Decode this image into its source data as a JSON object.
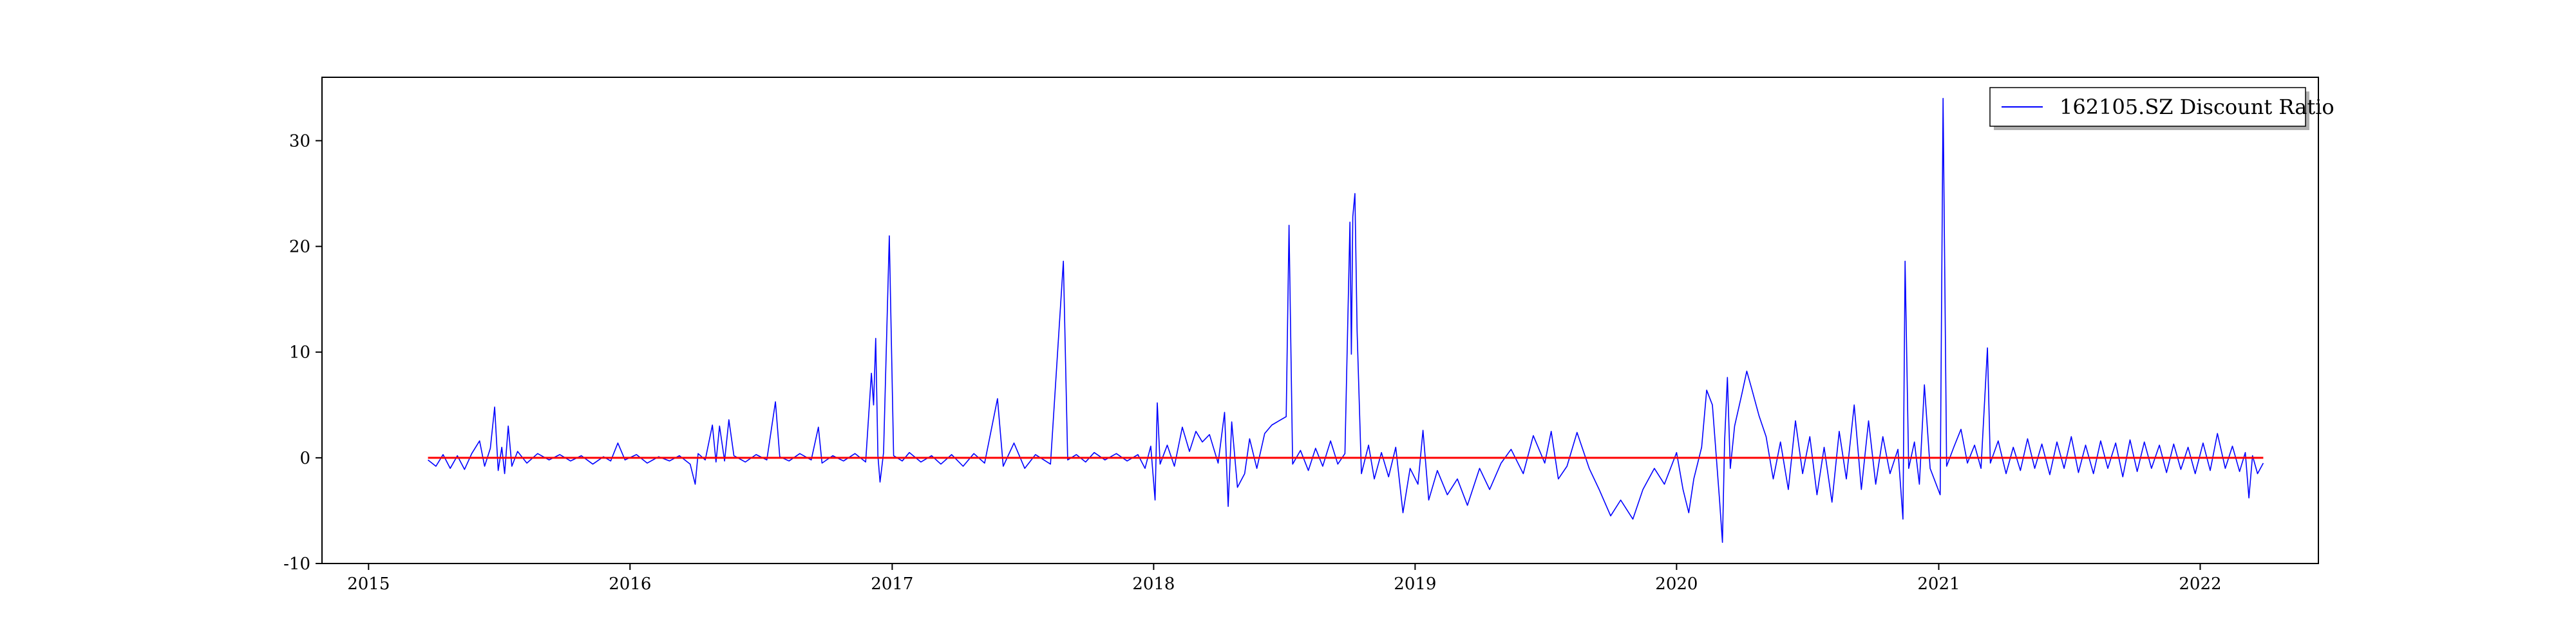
{
  "chart_data": {
    "type": "line",
    "title": "",
    "xlabel": "",
    "ylabel": "",
    "x_axis": {
      "type": "date",
      "range": [
        "2014-10-28",
        "2022-06-15"
      ],
      "ticks": [
        "2015",
        "2016",
        "2017",
        "2018",
        "2019",
        "2020",
        "2021",
        "2022"
      ]
    },
    "y_axis": {
      "range": [
        -10,
        36
      ],
      "ticks": [
        -10,
        0,
        10,
        20,
        30
      ]
    },
    "grid": false,
    "legend": {
      "position": "top-right",
      "entries": [
        "162105.SZ Discount Ratio"
      ]
    },
    "series": [
      {
        "name": "162105.SZ Discount Ratio",
        "color": "#0000ff",
        "style": "line",
        "points": [
          [
            "2015-03-25",
            -0.2
          ],
          [
            "2015-04-05",
            -0.8
          ],
          [
            "2015-04-15",
            0.3
          ],
          [
            "2015-04-25",
            -1.0
          ],
          [
            "2015-05-05",
            0.2
          ],
          [
            "2015-05-15",
            -1.1
          ],
          [
            "2015-05-25",
            0.4
          ],
          [
            "2015-06-05",
            1.6
          ],
          [
            "2015-06-12",
            -0.8
          ],
          [
            "2015-06-20",
            0.9
          ],
          [
            "2015-06-26",
            4.8
          ],
          [
            "2015-07-01",
            -1.2
          ],
          [
            "2015-07-06",
            1.0
          ],
          [
            "2015-07-10",
            -1.5
          ],
          [
            "2015-07-15",
            3.0
          ],
          [
            "2015-07-20",
            -0.8
          ],
          [
            "2015-07-28",
            0.6
          ],
          [
            "2015-08-10",
            -0.5
          ],
          [
            "2015-08-25",
            0.4
          ],
          [
            "2015-09-10",
            -0.2
          ],
          [
            "2015-09-25",
            0.3
          ],
          [
            "2015-10-10",
            -0.3
          ],
          [
            "2015-10-25",
            0.2
          ],
          [
            "2015-11-10",
            -0.6
          ],
          [
            "2015-11-25",
            0.1
          ],
          [
            "2015-12-05",
            -0.3
          ],
          [
            "2015-12-15",
            1.4
          ],
          [
            "2015-12-25",
            -0.2
          ],
          [
            "2016-01-10",
            0.3
          ],
          [
            "2016-01-25",
            -0.5
          ],
          [
            "2016-02-10",
            0.1
          ],
          [
            "2016-02-25",
            -0.3
          ],
          [
            "2016-03-10",
            0.2
          ],
          [
            "2016-03-25",
            -0.6
          ],
          [
            "2016-04-01",
            -2.5
          ],
          [
            "2016-04-05",
            0.4
          ],
          [
            "2016-04-15",
            -0.2
          ],
          [
            "2016-04-25",
            3.1
          ],
          [
            "2016-04-30",
            -0.4
          ],
          [
            "2016-05-05",
            3.0
          ],
          [
            "2016-05-12",
            -0.3
          ],
          [
            "2016-05-18",
            3.6
          ],
          [
            "2016-05-25",
            0.2
          ],
          [
            "2016-06-10",
            -0.4
          ],
          [
            "2016-06-25",
            0.3
          ],
          [
            "2016-07-10",
            -0.2
          ],
          [
            "2016-07-22",
            5.3
          ],
          [
            "2016-07-28",
            0.1
          ],
          [
            "2016-08-10",
            -0.3
          ],
          [
            "2016-08-25",
            0.4
          ],
          [
            "2016-09-10",
            -0.2
          ],
          [
            "2016-09-20",
            2.9
          ],
          [
            "2016-09-25",
            -0.5
          ],
          [
            "2016-10-10",
            0.2
          ],
          [
            "2016-10-25",
            -0.3
          ],
          [
            "2016-11-10",
            0.4
          ],
          [
            "2016-11-25",
            -0.4
          ],
          [
            "2016-12-03",
            8.0
          ],
          [
            "2016-12-06",
            5.0
          ],
          [
            "2016-12-09",
            11.3
          ],
          [
            "2016-12-12",
            0.2
          ],
          [
            "2016-12-15",
            -2.3
          ],
          [
            "2016-12-20",
            0.5
          ],
          [
            "2016-12-28",
            21.0
          ],
          [
            "2017-01-03",
            0.2
          ],
          [
            "2017-01-15",
            -0.3
          ],
          [
            "2017-01-25",
            0.5
          ],
          [
            "2017-02-10",
            -0.4
          ],
          [
            "2017-02-25",
            0.2
          ],
          [
            "2017-03-10",
            -0.6
          ],
          [
            "2017-03-25",
            0.3
          ],
          [
            "2017-04-10",
            -0.8
          ],
          [
            "2017-04-25",
            0.4
          ],
          [
            "2017-05-10",
            -0.5
          ],
          [
            "2017-05-28",
            5.6
          ],
          [
            "2017-06-05",
            -0.8
          ],
          [
            "2017-06-20",
            1.4
          ],
          [
            "2017-07-05",
            -1.0
          ],
          [
            "2017-07-20",
            0.3
          ],
          [
            "2017-08-10",
            -0.6
          ],
          [
            "2017-08-28",
            18.6
          ],
          [
            "2017-09-03",
            -0.2
          ],
          [
            "2017-09-15",
            0.3
          ],
          [
            "2017-09-28",
            -0.4
          ],
          [
            "2017-10-10",
            0.5
          ],
          [
            "2017-10-25",
            -0.2
          ],
          [
            "2017-11-10",
            0.4
          ],
          [
            "2017-11-25",
            -0.3
          ],
          [
            "2017-12-10",
            0.3
          ],
          [
            "2017-12-20",
            -1.0
          ],
          [
            "2017-12-28",
            1.1
          ],
          [
            "2018-01-03",
            -4.0
          ],
          [
            "2018-01-06",
            5.2
          ],
          [
            "2018-01-10",
            -0.6
          ],
          [
            "2018-01-20",
            1.2
          ],
          [
            "2018-01-30",
            -0.8
          ],
          [
            "2018-02-10",
            2.9
          ],
          [
            "2018-02-20",
            0.6
          ],
          [
            "2018-03-01",
            2.5
          ],
          [
            "2018-03-10",
            1.5
          ],
          [
            "2018-03-20",
            2.2
          ],
          [
            "2018-04-01",
            -0.5
          ],
          [
            "2018-04-10",
            4.3
          ],
          [
            "2018-04-15",
            -4.6
          ],
          [
            "2018-04-20",
            3.4
          ],
          [
            "2018-04-28",
            -2.8
          ],
          [
            "2018-05-08",
            -1.5
          ],
          [
            "2018-05-15",
            1.8
          ],
          [
            "2018-05-25",
            -1.0
          ],
          [
            "2018-06-05",
            2.3
          ],
          [
            "2018-06-15",
            3.1
          ],
          [
            "2018-06-25",
            3.5
          ],
          [
            "2018-07-05",
            3.9
          ],
          [
            "2018-07-09",
            22.0
          ],
          [
            "2018-07-14",
            -0.6
          ],
          [
            "2018-07-25",
            0.7
          ],
          [
            "2018-08-05",
            -1.2
          ],
          [
            "2018-08-15",
            0.9
          ],
          [
            "2018-08-25",
            -0.8
          ],
          [
            "2018-09-05",
            1.6
          ],
          [
            "2018-09-15",
            -0.6
          ],
          [
            "2018-09-25",
            0.4
          ],
          [
            "2018-10-02",
            22.3
          ],
          [
            "2018-10-04",
            9.8
          ],
          [
            "2018-10-06",
            22.8
          ],
          [
            "2018-10-09",
            25.0
          ],
          [
            "2018-10-12",
            12.0
          ],
          [
            "2018-10-18",
            -1.5
          ],
          [
            "2018-10-28",
            1.2
          ],
          [
            "2018-11-05",
            -2.0
          ],
          [
            "2018-11-15",
            0.5
          ],
          [
            "2018-11-25",
            -1.8
          ],
          [
            "2018-12-05",
            1.0
          ],
          [
            "2018-12-15",
            -5.2
          ],
          [
            "2018-12-25",
            -1.0
          ],
          [
            "2019-01-05",
            -2.5
          ],
          [
            "2019-01-12",
            2.6
          ],
          [
            "2019-01-20",
            -4.0
          ],
          [
            "2019-02-01",
            -1.2
          ],
          [
            "2019-02-15",
            -3.5
          ],
          [
            "2019-03-01",
            -2.0
          ],
          [
            "2019-03-15",
            -4.5
          ],
          [
            "2019-04-01",
            -1.0
          ],
          [
            "2019-04-15",
            -3.0
          ],
          [
            "2019-05-01",
            -0.5
          ],
          [
            "2019-05-15",
            0.8
          ],
          [
            "2019-06-01",
            -1.5
          ],
          [
            "2019-06-15",
            2.1
          ],
          [
            "2019-07-01",
            -0.5
          ],
          [
            "2019-07-10",
            2.5
          ],
          [
            "2019-07-20",
            -2.0
          ],
          [
            "2019-08-01",
            -0.8
          ],
          [
            "2019-08-15",
            2.4
          ],
          [
            "2019-09-01",
            -1.0
          ],
          [
            "2019-09-15",
            -3.0
          ],
          [
            "2019-10-01",
            -5.5
          ],
          [
            "2019-10-15",
            -4.0
          ],
          [
            "2019-11-01",
            -5.8
          ],
          [
            "2019-11-15",
            -3.0
          ],
          [
            "2019-12-01",
            -1.0
          ],
          [
            "2019-12-15",
            -2.5
          ],
          [
            "2020-01-01",
            0.5
          ],
          [
            "2020-01-10",
            -3.0
          ],
          [
            "2020-01-18",
            -5.2
          ],
          [
            "2020-01-25",
            -2.0
          ],
          [
            "2020-02-05",
            1.0
          ],
          [
            "2020-02-12",
            6.4
          ],
          [
            "2020-02-20",
            5.0
          ],
          [
            "2020-03-01",
            -4.0
          ],
          [
            "2020-03-05",
            -8.0
          ],
          [
            "2020-03-08",
            1.5
          ],
          [
            "2020-03-12",
            7.6
          ],
          [
            "2020-03-16",
            -1.0
          ],
          [
            "2020-03-22",
            3.0
          ],
          [
            "2020-04-01",
            6.0
          ],
          [
            "2020-04-08",
            8.2
          ],
          [
            "2020-04-15",
            6.5
          ],
          [
            "2020-04-25",
            4.0
          ],
          [
            "2020-05-05",
            2.0
          ],
          [
            "2020-05-15",
            -2.0
          ],
          [
            "2020-05-25",
            1.5
          ],
          [
            "2020-06-05",
            -3.0
          ],
          [
            "2020-06-15",
            3.5
          ],
          [
            "2020-06-25",
            -1.5
          ],
          [
            "2020-07-05",
            2.0
          ],
          [
            "2020-07-15",
            -3.5
          ],
          [
            "2020-07-25",
            1.0
          ],
          [
            "2020-08-05",
            -4.2
          ],
          [
            "2020-08-15",
            2.5
          ],
          [
            "2020-08-25",
            -2.0
          ],
          [
            "2020-09-05",
            5.0
          ],
          [
            "2020-09-15",
            -3.0
          ],
          [
            "2020-09-25",
            3.5
          ],
          [
            "2020-10-05",
            -2.5
          ],
          [
            "2020-10-15",
            2.0
          ],
          [
            "2020-10-25",
            -1.5
          ],
          [
            "2020-11-05",
            0.8
          ],
          [
            "2020-11-12",
            -5.8
          ],
          [
            "2020-11-15",
            18.6
          ],
          [
            "2020-11-20",
            -1.0
          ],
          [
            "2020-11-28",
            1.5
          ],
          [
            "2020-12-05",
            -2.5
          ],
          [
            "2020-12-12",
            6.9
          ],
          [
            "2020-12-20",
            -1.0
          ],
          [
            "2021-01-03",
            -3.5
          ],
          [
            "2021-01-07",
            34.0
          ],
          [
            "2021-01-12",
            -0.8
          ],
          [
            "2021-01-22",
            1.0
          ],
          [
            "2021-02-01",
            2.7
          ],
          [
            "2021-02-10",
            -0.5
          ],
          [
            "2021-02-20",
            1.2
          ],
          [
            "2021-03-01",
            -1.0
          ],
          [
            "2021-03-10",
            10.4
          ],
          [
            "2021-03-14",
            -0.5
          ],
          [
            "2021-03-25",
            1.6
          ],
          [
            "2021-04-05",
            -1.5
          ],
          [
            "2021-04-15",
            1.0
          ],
          [
            "2021-04-25",
            -1.2
          ],
          [
            "2021-05-05",
            1.8
          ],
          [
            "2021-05-15",
            -1.0
          ],
          [
            "2021-05-25",
            1.3
          ],
          [
            "2021-06-05",
            -1.6
          ],
          [
            "2021-06-15",
            1.5
          ],
          [
            "2021-06-25",
            -1.0
          ],
          [
            "2021-07-05",
            2.0
          ],
          [
            "2021-07-15",
            -1.4
          ],
          [
            "2021-07-25",
            1.2
          ],
          [
            "2021-08-05",
            -1.5
          ],
          [
            "2021-08-15",
            1.6
          ],
          [
            "2021-08-25",
            -1.0
          ],
          [
            "2021-09-05",
            1.4
          ],
          [
            "2021-09-15",
            -1.8
          ],
          [
            "2021-09-25",
            1.7
          ],
          [
            "2021-10-05",
            -1.3
          ],
          [
            "2021-10-15",
            1.5
          ],
          [
            "2021-10-25",
            -1.0
          ],
          [
            "2021-11-05",
            1.2
          ],
          [
            "2021-11-15",
            -1.4
          ],
          [
            "2021-11-25",
            1.3
          ],
          [
            "2021-12-05",
            -1.1
          ],
          [
            "2021-12-15",
            1.0
          ],
          [
            "2021-12-25",
            -1.5
          ],
          [
            "2022-01-05",
            1.4
          ],
          [
            "2022-01-15",
            -1.2
          ],
          [
            "2022-01-25",
            2.3
          ],
          [
            "2022-02-05",
            -1.0
          ],
          [
            "2022-02-15",
            1.1
          ],
          [
            "2022-02-25",
            -1.3
          ],
          [
            "2022-03-05",
            0.5
          ],
          [
            "2022-03-10",
            -3.8
          ],
          [
            "2022-03-15",
            0.2
          ],
          [
            "2022-03-22",
            -1.5
          ],
          [
            "2022-03-30",
            -0.5
          ]
        ]
      },
      {
        "name": "",
        "color": "#ff0000",
        "style": "hline",
        "points": [
          [
            "2015-03-25",
            0
          ],
          [
            "2022-03-30",
            0
          ]
        ]
      }
    ]
  }
}
